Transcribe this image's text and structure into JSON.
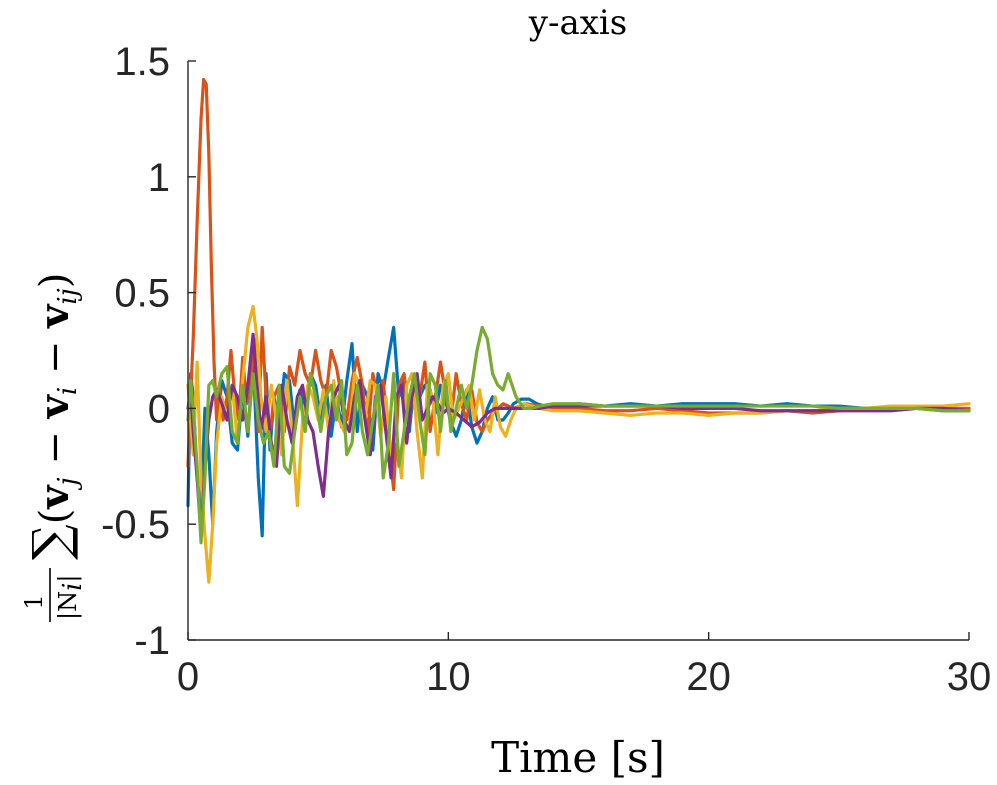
{
  "chart_data": {
    "type": "line",
    "title": "y-axis",
    "xlabel": "Time [s]",
    "ylabel": {
      "fraction_numerator": "1",
      "fraction_denominator": "|N",
      "fraction_denominator_sub": "i",
      "fraction_denominator_end": "|",
      "sum_symbol": "∑",
      "open_paren": "(",
      "v1": "v",
      "v1_sub": "j",
      "minus1": " − ",
      "v2": "v",
      "v2_sub": "i",
      "minus2": " − ",
      "v3": "v",
      "v3_sub": "ij",
      "close_paren": ")"
    },
    "xlim": [
      0,
      30
    ],
    "ylim": [
      -1,
      1.5
    ],
    "xticks": [
      0,
      10,
      20,
      30
    ],
    "xtick_labels": [
      "0",
      "10",
      "20",
      "30"
    ],
    "yticks": [
      -1,
      -0.5,
      0,
      0.5,
      1,
      1.5
    ],
    "ytick_labels": [
      "-1",
      "-0.5",
      "0",
      "0.5",
      "1",
      "1.5"
    ],
    "grid": false,
    "series": [
      {
        "color": "#0072BD",
        "x": [
          0,
          0.1,
          0.2,
          0.35,
          0.5,
          0.65,
          0.8,
          0.95,
          1.1,
          1.3,
          1.5,
          1.7,
          1.9,
          2.1,
          2.3,
          2.5,
          2.7,
          2.85,
          3.0,
          3.15,
          3.3,
          3.5,
          3.7,
          3.9,
          4.1,
          4.3,
          4.5,
          4.7,
          4.9,
          5.1,
          5.3,
          5.5,
          5.7,
          5.9,
          6.1,
          6.3,
          6.5,
          6.7,
          6.9,
          7.1,
          7.3,
          7.5,
          7.7,
          7.9,
          8.1,
          8.3,
          8.5,
          8.7,
          8.9,
          9.1,
          9.3,
          9.5,
          9.7,
          9.9,
          10.1,
          10.3,
          10.5,
          10.7,
          10.9,
          11.1,
          11.3,
          11.5,
          11.7,
          11.9,
          12.1,
          12.3,
          12.5,
          12.8,
          13.1,
          13.4,
          13.7,
          14.0,
          14.5,
          15,
          16,
          17,
          18,
          19,
          20,
          21,
          22,
          23,
          24,
          25,
          26,
          27,
          28,
          29,
          30
        ],
        "y": [
          -0.42,
          0.15,
          0.05,
          -0.3,
          -0.45,
          0.0,
          -0.2,
          -0.5,
          -0.1,
          0.12,
          0.05,
          -0.15,
          -0.18,
          0.08,
          -0.12,
          0.22,
          -0.3,
          -0.55,
          0.15,
          -0.18,
          0.05,
          -0.08,
          0.15,
          0.12,
          -0.1,
          0.08,
          -0.05,
          0.15,
          0.1,
          -0.05,
          0.1,
          -0.12,
          0.05,
          -0.08,
          0.12,
          0.28,
          -0.1,
          0.1,
          0.05,
          -0.18,
          0.15,
          0.08,
          0.22,
          0.35,
          0.05,
          0.12,
          -0.1,
          0.12,
          0.05,
          0.1,
          0.08,
          -0.02,
          0.1,
          0.03,
          -0.06,
          -0.12,
          -0.05,
          0.08,
          -0.08,
          -0.15,
          -0.1,
          0.0,
          0.05,
          -0.05,
          -0.05,
          -0.02,
          0.02,
          0.04,
          0.04,
          0.02,
          0.01,
          0.0,
          0.01,
          0.02,
          0.01,
          0.02,
          0.01,
          0.02,
          0.02,
          0.02,
          0.01,
          0.02,
          0.01,
          0.01,
          0.0,
          0.0,
          0.0,
          -0.01,
          -0.01
        ]
      },
      {
        "color": "#D95319",
        "x": [
          0,
          0.1,
          0.2,
          0.35,
          0.5,
          0.6,
          0.7,
          0.8,
          0.9,
          1.0,
          1.1,
          1.2,
          1.35,
          1.5,
          1.65,
          1.8,
          1.95,
          2.1,
          2.25,
          2.4,
          2.55,
          2.7,
          2.85,
          3.0,
          3.15,
          3.3,
          3.5,
          3.7,
          3.9,
          4.1,
          4.3,
          4.5,
          4.7,
          4.9,
          5.1,
          5.3,
          5.5,
          5.7,
          5.9,
          6.1,
          6.3,
          6.5,
          6.7,
          6.9,
          7.1,
          7.3,
          7.5,
          7.7,
          7.9,
          8.1,
          8.3,
          8.5,
          8.7,
          8.9,
          9.1,
          9.3,
          9.5,
          9.7,
          9.9,
          10.1,
          10.3,
          10.5,
          10.7,
          10.9,
          11.1,
          11.3,
          11.5,
          11.7,
          11.9,
          12.1,
          12.5,
          13,
          13.5,
          14,
          15,
          16,
          17,
          18,
          19,
          20,
          21,
          22,
          23,
          24,
          25,
          26,
          27,
          28,
          29,
          30
        ],
        "y": [
          -0.25,
          0.05,
          0.3,
          0.8,
          1.25,
          1.42,
          1.4,
          1.1,
          0.6,
          0.2,
          -0.05,
          0.1,
          -0.05,
          0.05,
          0.25,
          0.05,
          -0.05,
          0.22,
          0.02,
          0.12,
          0.3,
          -0.1,
          0.35,
          0.05,
          -0.12,
          0.05,
          0.1,
          -0.1,
          0.18,
          0.1,
          0.25,
          0.15,
          0.1,
          0.25,
          0.12,
          0.05,
          0.25,
          0.18,
          0.05,
          -0.05,
          0.12,
          0.22,
          0.1,
          -0.12,
          0.15,
          0.05,
          0.12,
          -0.15,
          -0.35,
          0.1,
          0.15,
          -0.05,
          0.12,
          0.05,
          0.2,
          -0.1,
          0.05,
          0.2,
          0.05,
          -0.05,
          0.15,
          0.02,
          -0.05,
          0.08,
          -0.06,
          -0.1,
          -0.05,
          -0.02,
          0.0,
          0.02,
          0.0,
          0.02,
          0.01,
          0.0,
          0.0,
          -0.01,
          -0.01,
          0.0,
          -0.01,
          -0.02,
          -0.02,
          -0.02,
          -0.01,
          -0.02,
          -0.01,
          0.0,
          0.0,
          0.0,
          0.0,
          0.0
        ]
      },
      {
        "color": "#EDB120",
        "x": [
          0,
          0.1,
          0.2,
          0.35,
          0.5,
          0.65,
          0.8,
          0.95,
          1.1,
          1.3,
          1.5,
          1.7,
          1.9,
          2.1,
          2.3,
          2.5,
          2.65,
          2.8,
          3.0,
          3.2,
          3.4,
          3.6,
          3.8,
          4.0,
          4.2,
          4.4,
          4.6,
          4.8,
          5.0,
          5.2,
          5.4,
          5.6,
          5.8,
          6.0,
          6.2,
          6.4,
          6.6,
          6.8,
          7.0,
          7.2,
          7.4,
          7.6,
          7.8,
          8.0,
          8.2,
          8.4,
          8.6,
          8.8,
          9.0,
          9.2,
          9.4,
          9.6,
          9.8,
          10.0,
          10.2,
          10.4,
          10.6,
          10.8,
          11.0,
          11.2,
          11.4,
          11.6,
          11.8,
          12.0,
          12.2,
          12.4,
          12.6,
          12.9,
          13.2,
          13.5,
          14,
          15,
          16,
          17,
          18,
          19,
          20,
          21,
          22,
          23,
          24,
          25,
          26,
          27,
          28,
          29,
          30
        ],
        "y": [
          0.1,
          -0.05,
          -0.2,
          0.2,
          -0.3,
          -0.55,
          -0.75,
          -0.5,
          -0.15,
          0.05,
          -0.05,
          0.1,
          -0.15,
          0.12,
          0.35,
          0.44,
          0.3,
          0.05,
          -0.1,
          0.1,
          -0.05,
          -0.2,
          0.12,
          -0.1,
          -0.42,
          -0.05,
          0.1,
          0.05,
          -0.05,
          0.08,
          -0.1,
          0.12,
          -0.05,
          -0.1,
          -0.08,
          0.15,
          0.1,
          -0.05,
          0.12,
          0.1,
          -0.12,
          0.05,
          -0.2,
          -0.1,
          -0.3,
          0.1,
          0.15,
          -0.1,
          -0.3,
          0.1,
          0.05,
          -0.2,
          0.1,
          0.15,
          -0.05,
          0.0,
          0.05,
          0.1,
          -0.05,
          0.08,
          -0.05,
          -0.1,
          0.05,
          -0.08,
          -0.12,
          -0.05,
          0.0,
          0.02,
          0.01,
          0.0,
          -0.01,
          -0.01,
          -0.02,
          -0.03,
          -0.02,
          -0.02,
          -0.03,
          -0.02,
          -0.02,
          -0.01,
          -0.01,
          0.0,
          0.0,
          0.01,
          0.01,
          0.01,
          0.02
        ]
      },
      {
        "color": "#7E2F8E",
        "x": [
          0,
          0.1,
          0.2,
          0.35,
          0.5,
          0.65,
          0.8,
          0.95,
          1.1,
          1.3,
          1.5,
          1.7,
          1.9,
          2.1,
          2.3,
          2.5,
          2.65,
          2.8,
          3.0,
          3.2,
          3.4,
          3.6,
          3.8,
          4.0,
          4.2,
          4.4,
          4.6,
          4.8,
          5.0,
          5.2,
          5.4,
          5.6,
          5.8,
          6.0,
          6.2,
          6.4,
          6.6,
          6.8,
          7.0,
          7.2,
          7.4,
          7.6,
          7.8,
          8.0,
          8.2,
          8.4,
          8.6,
          8.8,
          9.0,
          9.2,
          9.4,
          9.6,
          9.8,
          10.0,
          10.3,
          10.6,
          10.9,
          11.2,
          11.5,
          11.8,
          12.1,
          12.5,
          13,
          13.5,
          14,
          15,
          16,
          17,
          18,
          19,
          20,
          21,
          22,
          23,
          24,
          25,
          26,
          27,
          28,
          29,
          30
        ],
        "y": [
          0.0,
          0.08,
          -0.1,
          -0.3,
          -0.55,
          -0.25,
          -0.05,
          0.05,
          0.08,
          0.02,
          -0.05,
          0.1,
          0.05,
          -0.05,
          0.1,
          0.32,
          0.1,
          -0.1,
          0.05,
          -0.15,
          -0.25,
          0.1,
          -0.05,
          -0.15,
          0.05,
          0.1,
          -0.05,
          -0.1,
          -0.25,
          -0.38,
          -0.1,
          0.05,
          0.1,
          -0.05,
          -0.1,
          0.05,
          0.12,
          -0.05,
          -0.2,
          0.05,
          0.1,
          -0.1,
          -0.3,
          0.05,
          0.1,
          -0.15,
          0.05,
          0.15,
          -0.05,
          0.0,
          0.05,
          0.02,
          -0.02,
          0.0,
          -0.02,
          -0.05,
          -0.08,
          -0.06,
          -0.02,
          0.0,
          0.0,
          0.0,
          0.0,
          0.0,
          0.01,
          0.01,
          0.01,
          0.01,
          0.01,
          0.0,
          0.0,
          0.0,
          -0.01,
          -0.01,
          -0.01,
          -0.01,
          -0.01,
          -0.01,
          0.0,
          0.0,
          -0.01
        ]
      },
      {
        "color": "#77AC30",
        "x": [
          0,
          0.1,
          0.2,
          0.35,
          0.5,
          0.65,
          0.8,
          0.95,
          1.1,
          1.3,
          1.5,
          1.7,
          1.9,
          2.1,
          2.3,
          2.5,
          2.7,
          2.9,
          3.1,
          3.3,
          3.5,
          3.7,
          3.9,
          4.1,
          4.3,
          4.5,
          4.7,
          4.9,
          5.1,
          5.3,
          5.5,
          5.7,
          5.9,
          6.1,
          6.3,
          6.5,
          6.7,
          6.9,
          7.1,
          7.3,
          7.5,
          7.7,
          7.9,
          8.1,
          8.3,
          8.5,
          8.7,
          8.9,
          9.1,
          9.3,
          9.5,
          9.7,
          9.9,
          10.1,
          10.3,
          10.5,
          10.7,
          10.9,
          11.1,
          11.3,
          11.5,
          11.7,
          11.9,
          12.1,
          12.3,
          12.6,
          12.9,
          13.2,
          13.5,
          14,
          15,
          16,
          17,
          18,
          19,
          20,
          21,
          22,
          23,
          24,
          25,
          26,
          27,
          28,
          29,
          30
        ],
        "y": [
          -0.05,
          0.12,
          0.0,
          -0.25,
          -0.58,
          -0.3,
          0.1,
          0.12,
          0.05,
          0.15,
          0.18,
          -0.1,
          -0.15,
          0.1,
          -0.1,
          0.15,
          -0.05,
          -0.15,
          -0.1,
          -0.25,
          0.1,
          -0.25,
          -0.28,
          -0.1,
          0.05,
          -0.1,
          0.15,
          0.05,
          -0.1,
          0.05,
          0.1,
          -0.05,
          0.12,
          -0.2,
          -0.15,
          0.1,
          -0.1,
          -0.2,
          -0.05,
          0.1,
          -0.3,
          -0.15,
          0.15,
          -0.25,
          -0.1,
          0.05,
          0.15,
          -0.05,
          -0.2,
          0.15,
          0.1,
          -0.1,
          0.12,
          -0.1,
          0.0,
          0.1,
          0.0,
          0.1,
          0.25,
          0.35,
          0.3,
          0.15,
          0.1,
          0.08,
          0.15,
          0.05,
          0.0,
          0.0,
          0.01,
          0.02,
          0.02,
          0.01,
          0.01,
          0.01,
          0.01,
          0.01,
          0.01,
          0.01,
          0.01,
          0.01,
          0.0,
          0.0,
          0.0,
          0.0,
          -0.01,
          -0.01
        ]
      }
    ]
  }
}
